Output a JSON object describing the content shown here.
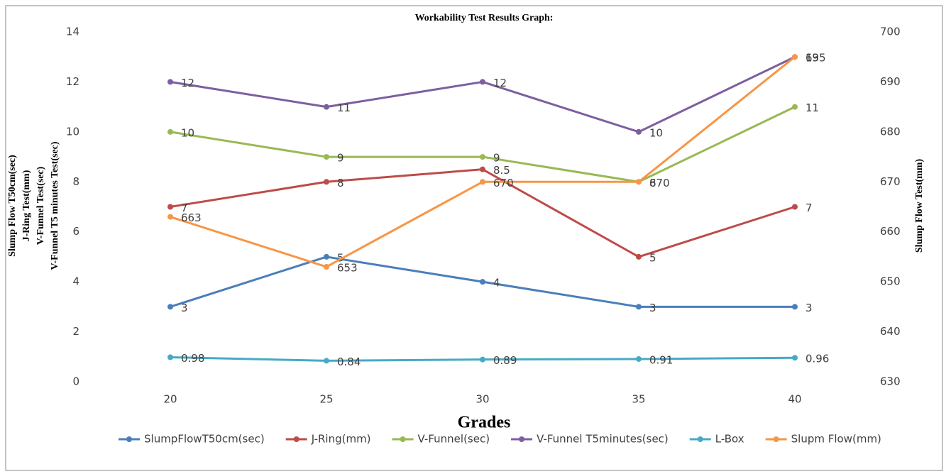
{
  "chart_data": {
    "type": "line",
    "title": "Workability Test Results Graph:",
    "xlabel": "Grades",
    "ylabel": [
      "Slump Flow T50cm(sec)",
      "J-Ring Test(mm)",
      "V-Funnel Test(sec)",
      "V-Funnel T5 minutes Test(sec)"
    ],
    "y2label": "Slump Flow Test(mm)",
    "categories": [
      "20",
      "25",
      "30",
      "35",
      "40"
    ],
    "ylim": [
      0,
      14
    ],
    "yticks": [
      0,
      2,
      4,
      6,
      8,
      10,
      12,
      14
    ],
    "y2lim": [
      630,
      700
    ],
    "y2ticks": [
      630,
      640,
      650,
      660,
      670,
      680,
      690,
      700
    ],
    "legend": "bottom",
    "series": [
      {
        "name": "SlumpFlowT50cm(sec)",
        "color": "#4a7ebb",
        "values": [
          3,
          5,
          4,
          3,
          3
        ]
      },
      {
        "name": "J-Ring(mm)",
        "color": "#be4b48",
        "values": [
          7,
          8,
          8.5,
          5,
          7
        ]
      },
      {
        "name": "V-Funnel(sec)",
        "color": "#98b954",
        "values": [
          10,
          9,
          9,
          8,
          11
        ]
      },
      {
        "name": "V-Funnel T5minutes(sec)",
        "color": "#7d5fa0",
        "values": [
          12,
          11,
          12,
          10,
          13
        ]
      },
      {
        "name": "L-Box",
        "color": "#46aac5",
        "values": [
          0.98,
          0.84,
          0.89,
          0.91,
          0.96
        ]
      },
      {
        "name": "Slupm Flow(mm)",
        "color": "#f79646",
        "axis": "y2",
        "values": [
          663,
          653,
          670,
          670,
          695
        ]
      }
    ]
  }
}
